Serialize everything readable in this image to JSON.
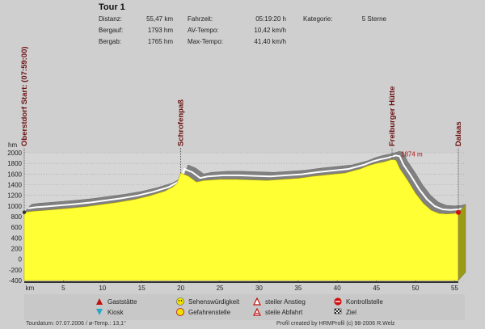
{
  "header": {
    "title": "Tour 1",
    "stats": [
      {
        "label": "Distanz:",
        "value": "55,47 km"
      },
      {
        "label": "Bergauf:",
        "value": "1793 hm"
      },
      {
        "label": "Bergab:",
        "value": "1765 hm"
      }
    ],
    "stats2": [
      {
        "label": "Fahrzeit:",
        "value": "05:19:20 h"
      },
      {
        "label": "AV-Tempo:",
        "value": "10,42 km/h"
      },
      {
        "label": "Max-Tempo:",
        "value": "41,40 km/h"
      }
    ],
    "category_label": "Kategorie:",
    "category_value": "5 Sterne"
  },
  "chart_data": {
    "type": "area",
    "ylabel": "hm",
    "xlabel": "km",
    "ylim": [
      -400,
      2000
    ],
    "xlim": [
      0,
      55.47
    ],
    "y_ticks": [
      "2000",
      "1800",
      "1600",
      "1400",
      "1200",
      "1000",
      "800",
      "600",
      "400",
      "200",
      "0",
      "-200",
      "-400"
    ],
    "x_ticks": [
      "km",
      "5",
      "10",
      "15",
      "20",
      "25",
      "30",
      "35",
      "40",
      "45",
      "50",
      "55"
    ],
    "x": [
      0,
      1,
      2,
      4,
      6,
      8,
      10,
      12,
      14,
      16,
      18,
      19,
      19.5,
      20,
      21,
      22,
      23,
      25,
      27,
      29,
      31,
      33,
      35,
      37,
      39,
      41,
      43,
      44,
      45,
      46,
      47,
      47.5,
      48,
      49,
      50,
      51,
      52,
      53,
      54,
      55,
      55.47
    ],
    "y": [
      880,
      900,
      910,
      935,
      960,
      990,
      1030,
      1070,
      1120,
      1190,
      1280,
      1360,
      1420,
      1620,
      1560,
      1450,
      1480,
      1500,
      1500,
      1490,
      1480,
      1500,
      1520,
      1560,
      1590,
      1620,
      1700,
      1760,
      1800,
      1830,
      1874,
      1860,
      1700,
      1480,
      1240,
      1050,
      920,
      860,
      850,
      860,
      880
    ],
    "waypoints": [
      {
        "label": "Oberstdorf  Start: (07:59:00)",
        "x": 0
      },
      {
        "label": "Schrofenpaß",
        "x": 20
      },
      {
        "label": "Freiburger Hütte",
        "x": 47
      },
      {
        "label": "Dalaas",
        "x": 55.47
      }
    ],
    "peak_annotation": "1874 m",
    "grid": true,
    "colors": {
      "fill": "#ffff33",
      "shadow": "#808080",
      "line": "#ffffff",
      "background": "#cfcfcf"
    }
  },
  "legend": [
    {
      "label": "Gaststätte",
      "icon": "restaurant-icon"
    },
    {
      "label": "Sehenswürdigkeit",
      "icon": "smiley-icon"
    },
    {
      "label": "steiler Anstieg",
      "icon": "steep-ascent-icon"
    },
    {
      "label": "Kontrollstelle",
      "icon": "stop-icon"
    },
    {
      "label": "Kiosk",
      "icon": "kiosk-icon"
    },
    {
      "label": "Gefahrenstelle",
      "icon": "hazard-icon"
    },
    {
      "label": "steile Abfahrt",
      "icon": "steep-descent-icon"
    },
    {
      "label": "Ziel",
      "icon": "finish-flag-icon"
    }
  ],
  "footer": {
    "left": "Tourdatum: 07.07.2006  /  ø-Temp.: 13,1°",
    "right": "Profil created by HRMProfil (c) 98-2006 R.Welz"
  }
}
